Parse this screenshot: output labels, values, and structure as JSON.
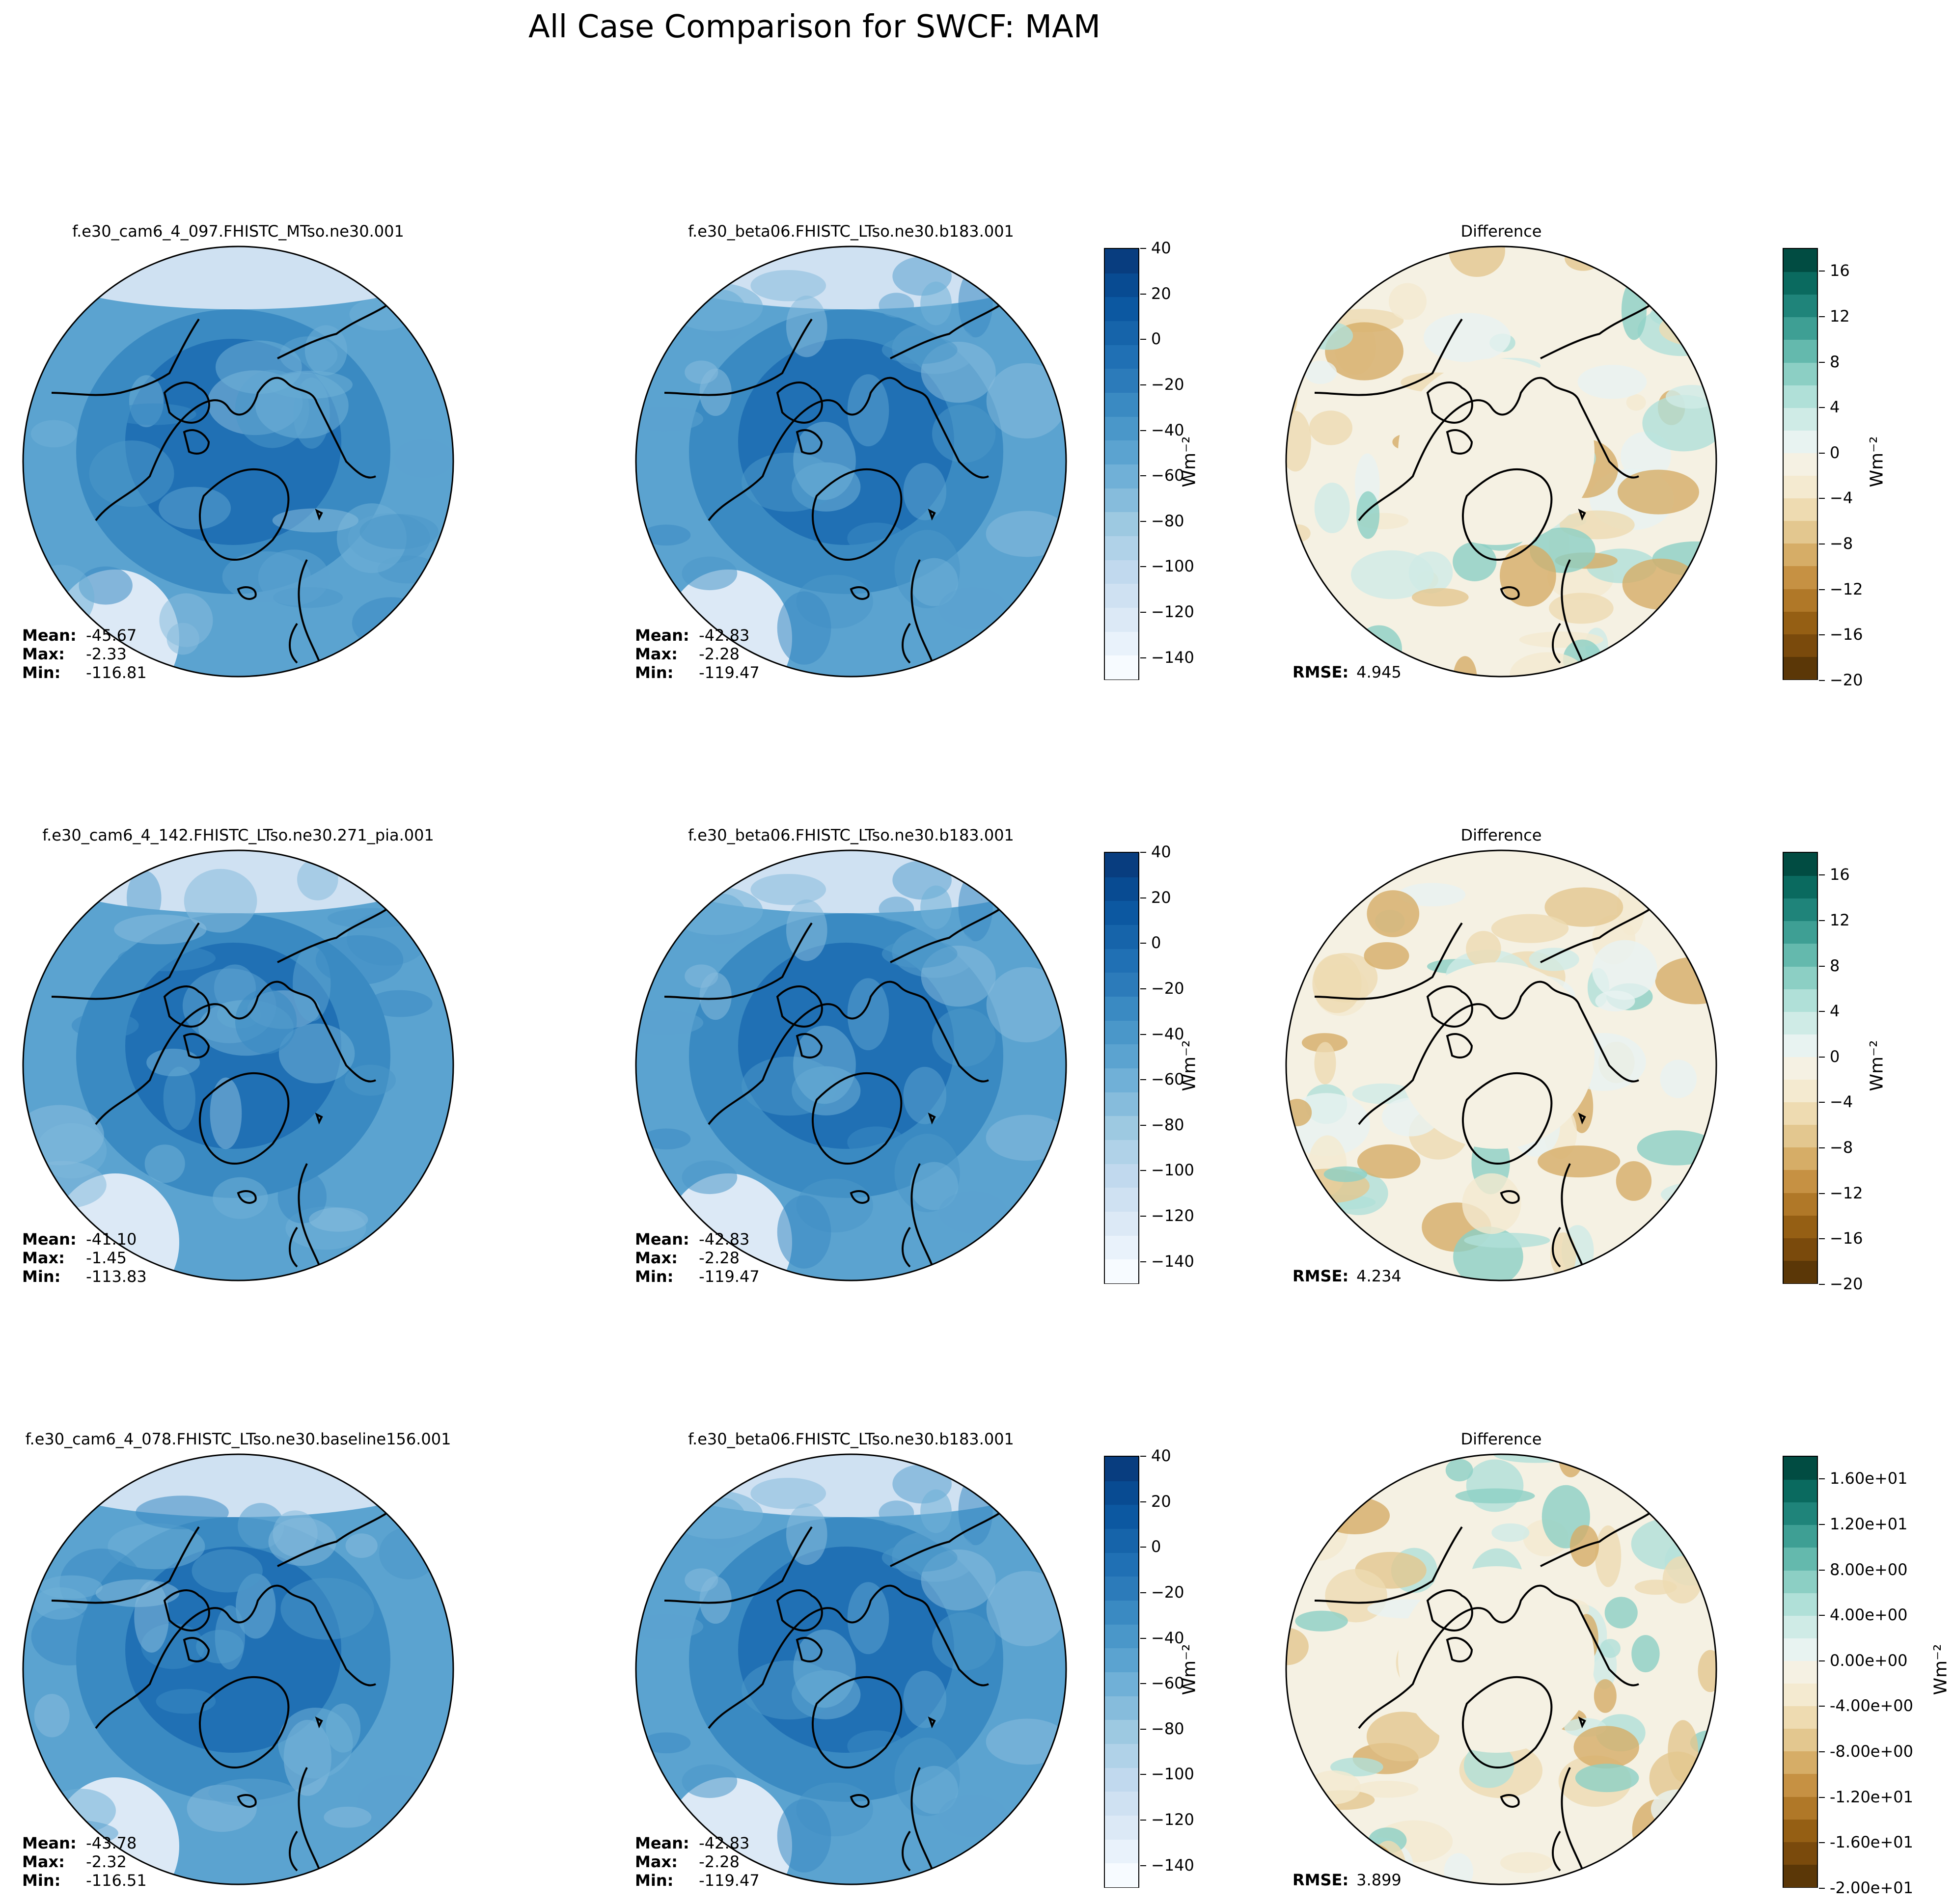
{
  "figure": {
    "title": "All Case Comparison for SWCF: MAM"
  },
  "colors": {
    "abs_cmap": [
      "#f7fbff",
      "#e9f2fb",
      "#dce9f6",
      "#cfe1f2",
      "#c1d9ee",
      "#b0d2e8",
      "#9dc9e1",
      "#86bcdc",
      "#70b0d7",
      "#5ba3d0",
      "#4a97c9",
      "#3a8ac2",
      "#2c7bba",
      "#2070b4",
      "#1664aa",
      "#0c58a1",
      "#084b92",
      "#083d7f"
    ],
    "diff_cmap": [
      "#5b3707",
      "#7a4a0c",
      "#955f14",
      "#b07828",
      "#c69143",
      "#d6ad67",
      "#e3c78f",
      "#eedbb1",
      "#f4ead0",
      "#f5f1e3",
      "#e8f3f1",
      "#cfebe6",
      "#b0e0d8",
      "#8ccfc4",
      "#64b9ad",
      "#3e9f94",
      "#1f847a",
      "#0a6a5f",
      "#014c42"
    ],
    "coastline": "#000000"
  },
  "rows": [
    {
      "test_title": "f.e30_cam6_4_097.FHISTC_MTso.ne30.001",
      "ref_title": "f.e30_beta06.FHISTC_LTso.ne30.b183.001",
      "diff_title": "Difference",
      "test_stats": {
        "mean": "-45.67",
        "max": "-2.33",
        "min": "-116.81"
      },
      "ref_stats": {
        "mean": "-42.83",
        "max": "-2.28",
        "min": "-119.47"
      },
      "rmse": "4.945",
      "diff_ticks": [
        "16",
        "12",
        "8",
        "4",
        "0",
        "−4",
        "−8",
        "−12",
        "−16",
        "−20"
      ]
    },
    {
      "test_title": "f.e30_cam6_4_142.FHISTC_LTso.ne30.271_pia.001",
      "ref_title": "f.e30_beta06.FHISTC_LTso.ne30.b183.001",
      "diff_title": "Difference",
      "test_stats": {
        "mean": "-41.10",
        "max": "-1.45",
        "min": "-113.83"
      },
      "ref_stats": {
        "mean": "-42.83",
        "max": "-2.28",
        "min": "-119.47"
      },
      "rmse": "4.234",
      "diff_ticks": [
        "16",
        "12",
        "8",
        "4",
        "0",
        "−4",
        "−8",
        "−12",
        "−16",
        "−20"
      ]
    },
    {
      "test_title": "f.e30_cam6_4_078.FHISTC_LTso.ne30.baseline156.001",
      "ref_title": "f.e30_beta06.FHISTC_LTso.ne30.b183.001",
      "diff_title": "Difference",
      "test_stats": {
        "mean": "-43.78",
        "max": "-2.32",
        "min": "-116.51"
      },
      "ref_stats": {
        "mean": "-42.83",
        "max": "-2.28",
        "min": "-119.47"
      },
      "rmse": "3.899",
      "diff_ticks": [
        "1.60e+01",
        "1.20e+01",
        "8.00e+00",
        "4.00e+00",
        "0.00e+00",
        "-4.00e+00",
        "-8.00e+00",
        "-1.20e+01",
        "-1.60e+01",
        "-2.00e+01"
      ]
    }
  ],
  "labels": {
    "mean": "Mean:",
    "max": "Max:",
    "min": "Min:",
    "rmse": "RMSE:",
    "units": "Wm⁻²"
  },
  "chart_data": {
    "type": "heatmap",
    "title": "All Case Comparison for SWCF: MAM",
    "projection": "north polar stereographic",
    "abs_colorbar": {
      "range": [
        -150,
        40
      ],
      "ticks": [
        40,
        20,
        0,
        -20,
        -40,
        -60,
        -80,
        -100,
        -120,
        -140
      ],
      "units": "Wm⁻²"
    },
    "diff_colorbar": {
      "range": [
        -20,
        18
      ],
      "ticks": [
        16,
        12,
        8,
        4,
        0,
        -4,
        -8,
        -12,
        -16,
        -20
      ],
      "units": "Wm⁻²"
    },
    "panels": [
      {
        "row": 1,
        "col": "test",
        "case": "f.e30_cam6_4_097.FHISTC_MTso.ne30.001",
        "mean": -45.67,
        "max": -2.33,
        "min": -116.81
      },
      {
        "row": 1,
        "col": "reference",
        "case": "f.e30_beta06.FHISTC_LTso.ne30.b183.001",
        "mean": -42.83,
        "max": -2.28,
        "min": -119.47
      },
      {
        "row": 1,
        "col": "difference",
        "rmse": 4.945
      },
      {
        "row": 2,
        "col": "test",
        "case": "f.e30_cam6_4_142.FHISTC_LTso.ne30.271_pia.001",
        "mean": -41.1,
        "max": -1.45,
        "min": -113.83
      },
      {
        "row": 2,
        "col": "reference",
        "case": "f.e30_beta06.FHISTC_LTso.ne30.b183.001",
        "mean": -42.83,
        "max": -2.28,
        "min": -119.47
      },
      {
        "row": 2,
        "col": "difference",
        "rmse": 4.234
      },
      {
        "row": 3,
        "col": "test",
        "case": "f.e30_cam6_4_078.FHISTC_LTso.ne30.baseline156.001",
        "mean": -43.78,
        "max": -2.32,
        "min": -116.51
      },
      {
        "row": 3,
        "col": "reference",
        "case": "f.e30_beta06.FHISTC_LTso.ne30.b183.001",
        "mean": -42.83,
        "max": -2.28,
        "min": -119.47
      },
      {
        "row": 3,
        "col": "difference",
        "rmse": 3.899
      }
    ]
  }
}
